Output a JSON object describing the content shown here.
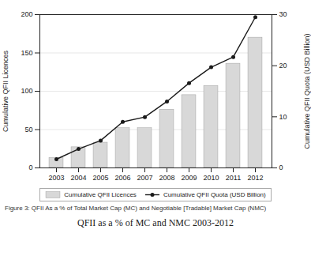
{
  "chart_data": {
    "type": "bar",
    "categories": [
      "2003",
      "2004",
      "2005",
      "2006",
      "2007",
      "2008",
      "2009",
      "2010",
      "2011",
      "2012"
    ],
    "series": [
      {
        "name": "Cumulative QFII Licences",
        "type": "bar",
        "color": "#d8d8d8",
        "values": [
          13,
          27,
          33,
          52,
          52,
          76,
          95,
          107,
          136,
          170
        ]
      },
      {
        "name": "Cumulative QFII Quota (USD Billion)",
        "type": "line",
        "color": "#1a1a1a",
        "marker": "o",
        "axis": "y2",
        "values": [
          1.7,
          3.7,
          5.35,
          9.0,
          9.95,
          13.0,
          16.6,
          19.7,
          21.7,
          29.5
        ]
      }
    ],
    "ylabel": "Cumulative QFII Licences",
    "y2label": "Cumulative QFII Quota (USD Billion)",
    "ylim": [
      0,
      200
    ],
    "yticks": [
      0,
      50,
      100,
      150,
      200
    ],
    "y2lim": [
      0,
      30
    ],
    "y2ticks": [
      0,
      10,
      20,
      30
    ],
    "grid": true,
    "legend": "bottom",
    "annotations": [
      "Figure 3: QFII As a % of Total Market Cap (MC) and Negotiable [Tradable] Market Cap (NMC)",
      "QFII as a % of MC and NMC 2003-2012"
    ]
  }
}
